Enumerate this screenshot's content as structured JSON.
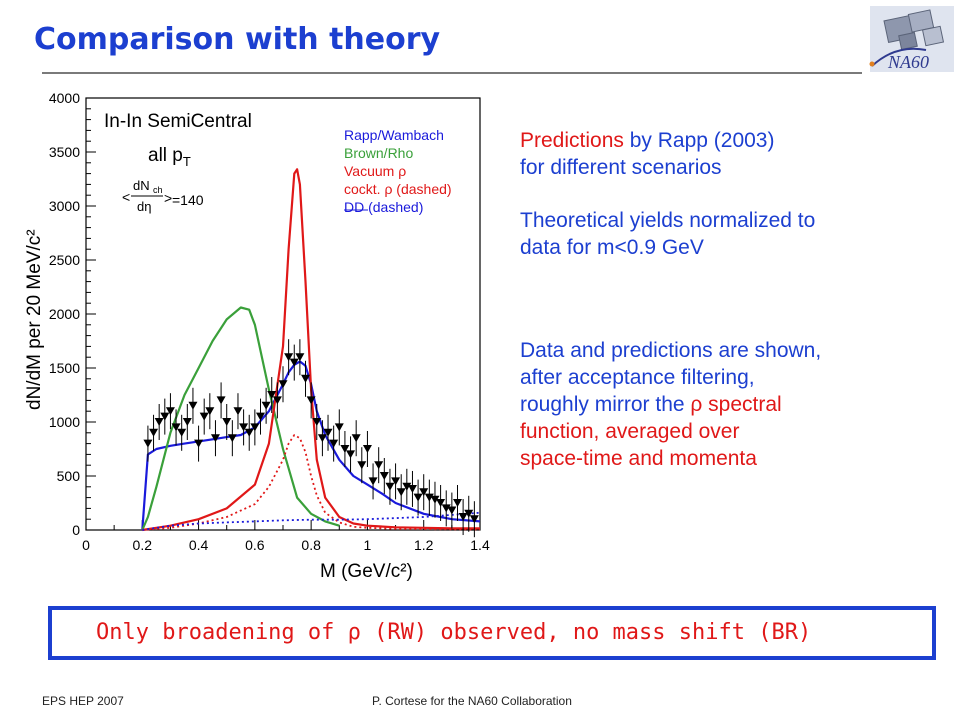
{
  "slide": {
    "title": "Comparison with theory",
    "logo_text": "NA60",
    "text": {
      "pred_word": "Predictions",
      "pred_rest": " by Rapp (2003)",
      "pred_line2": "for different scenarios",
      "norm_line1": "Theoretical yields normalized to",
      "norm_line2": "data for m<0.9 GeV",
      "data_line1": "Data and predictions are shown,",
      "data_line2": "after acceptance filtering,",
      "data_line3a": "roughly mirror the ",
      "rho": "ρ",
      "data_line3b": " spectral",
      "data_line4": "function, averaged over",
      "data_line5": "space-time and momenta"
    },
    "conclusion": "Only broadening of ρ (RW) observed,  no mass shift (BR)",
    "footer_left": "EPS HEP 2007",
    "footer_center": "P. Cortese for the NA60 Collaboration"
  },
  "chart_data": {
    "type": "line",
    "xlabel": "M (GeV/c²)",
    "ylabel": "dN/dM per 20 MeV/c²",
    "xlim": [
      0,
      1.4
    ],
    "ylim": [
      0,
      4000
    ],
    "xticks": [
      0,
      0.2,
      0.4,
      0.6,
      0.8,
      1,
      1.2,
      1.4
    ],
    "yticks": [
      0,
      500,
      1000,
      1500,
      2000,
      2500,
      3000,
      3500,
      4000
    ],
    "panel_label": "In-In SemiCentral",
    "pt_label": "all p",
    "pt_sub": "T",
    "mult_label": "=140",
    "legend": [
      "Rapp/Wambach",
      "Brown/Rho",
      "Vacuum ρ",
      "cockt. ρ  (dashed)",
      "DD  (dashed)"
    ],
    "colors": {
      "rw": "#1a1adb",
      "br": "#3aa03a",
      "vac": "#e01818",
      "cockt": "#e01818",
      "dd": "#1a1adb",
      "data": "#000000"
    },
    "series": [
      {
        "name": "Rapp/Wambach",
        "style": "solid",
        "x": [
          0.2,
          0.22,
          0.25,
          0.3,
          0.35,
          0.4,
          0.45,
          0.5,
          0.55,
          0.6,
          0.65,
          0.7,
          0.72,
          0.74,
          0.76,
          0.78,
          0.8,
          0.82,
          0.85,
          0.9,
          0.95,
          1.0,
          1.05,
          1.1,
          1.2,
          1.3,
          1.4
        ],
        "y": [
          0,
          700,
          750,
          780,
          800,
          820,
          840,
          860,
          880,
          950,
          1100,
          1350,
          1460,
          1530,
          1560,
          1520,
          1350,
          1100,
          880,
          650,
          500,
          420,
          340,
          250,
          150,
          100,
          80
        ]
      },
      {
        "name": "Brown/Rho",
        "style": "solid",
        "x": [
          0.2,
          0.22,
          0.25,
          0.3,
          0.35,
          0.4,
          0.45,
          0.5,
          0.55,
          0.58,
          0.6,
          0.65,
          0.7,
          0.75,
          0.8,
          0.85,
          0.9
        ],
        "y": [
          0,
          120,
          400,
          900,
          1250,
          1500,
          1750,
          1950,
          2060,
          2040,
          1900,
          1300,
          750,
          300,
          150,
          80,
          40
        ]
      },
      {
        "name": "Vacuum ρ",
        "style": "solid",
        "x": [
          0.2,
          0.3,
          0.4,
          0.5,
          0.6,
          0.65,
          0.7,
          0.72,
          0.74,
          0.75,
          0.76,
          0.78,
          0.8,
          0.82,
          0.85,
          0.9,
          0.95,
          1.0,
          1.1,
          1.2,
          1.3,
          1.4
        ],
        "y": [
          0,
          40,
          100,
          200,
          420,
          800,
          1700,
          2600,
          3300,
          3340,
          3200,
          2300,
          1300,
          650,
          300,
          120,
          60,
          40,
          25,
          20,
          15,
          15
        ]
      },
      {
        "name": "cockt. ρ",
        "style": "dashed",
        "x": [
          0.2,
          0.3,
          0.4,
          0.5,
          0.6,
          0.65,
          0.7,
          0.72,
          0.74,
          0.76,
          0.78,
          0.8,
          0.82,
          0.85,
          0.9,
          0.95,
          1.0,
          1.1,
          1.2,
          1.4
        ],
        "y": [
          0,
          20,
          60,
          120,
          240,
          400,
          650,
          800,
          880,
          850,
          720,
          500,
          320,
          160,
          70,
          30,
          20,
          10,
          8,
          5
        ]
      },
      {
        "name": "DD",
        "style": "dashed",
        "x": [
          0.2,
          0.3,
          0.4,
          0.5,
          0.6,
          0.7,
          0.8,
          0.9,
          1.0,
          1.1,
          1.2,
          1.3,
          1.4
        ],
        "y": [
          0,
          40,
          60,
          70,
          80,
          90,
          95,
          95,
          100,
          110,
          120,
          140,
          160
        ]
      },
      {
        "name": "Data",
        "style": "points",
        "x": [
          0.22,
          0.24,
          0.26,
          0.28,
          0.3,
          0.32,
          0.34,
          0.36,
          0.38,
          0.4,
          0.42,
          0.44,
          0.46,
          0.48,
          0.5,
          0.52,
          0.54,
          0.56,
          0.58,
          0.6,
          0.62,
          0.64,
          0.66,
          0.68,
          0.7,
          0.72,
          0.74,
          0.76,
          0.78,
          0.8,
          0.82,
          0.84,
          0.86,
          0.88,
          0.9,
          0.92,
          0.94,
          0.96,
          0.98,
          1.0,
          1.02,
          1.04,
          1.06,
          1.08,
          1.1,
          1.12,
          1.14,
          1.16,
          1.18,
          1.2,
          1.22,
          1.24,
          1.26,
          1.28,
          1.3,
          1.32,
          1.34,
          1.36,
          1.38
        ],
        "y": [
          800,
          900,
          1000,
          1050,
          1100,
          950,
          900,
          1000,
          1150,
          800,
          1050,
          1100,
          850,
          1200,
          1000,
          850,
          1100,
          950,
          900,
          950,
          1050,
          1150,
          1250,
          1200,
          1350,
          1600,
          1550,
          1600,
          1400,
          1200,
          1000,
          850,
          900,
          800,
          950,
          750,
          700,
          850,
          600,
          750,
          450,
          600,
          500,
          400,
          450,
          350,
          400,
          380,
          300,
          350,
          300,
          280,
          250,
          200,
          180,
          250,
          120,
          150,
          100
        ]
      }
    ]
  }
}
